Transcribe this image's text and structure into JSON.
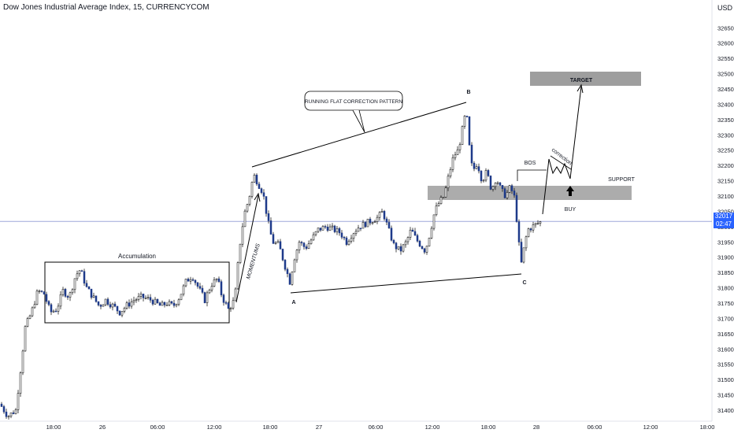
{
  "header": {
    "symbol_title": "Dow Jones Industrial Average Index, 15, CURRENCYCOM",
    "currency": "USD"
  },
  "price_tag": {
    "price": "32017",
    "countdown": "02:47",
    "color": "#2962ff"
  },
  "colors": {
    "up_candle": "#ffffff",
    "down_candle": "#1e3a8a",
    "wick": "#000000",
    "zone": "#9e9e9e",
    "axis_text": "#131722",
    "last_price_line": "#9fa8da"
  },
  "chart_data": {
    "type": "candlestick",
    "title": "Dow Jones Industrial Average Index, 15, CURRENCYCOM",
    "y_unit": "USD",
    "y_range": [
      31380,
      32680
    ],
    "y_ticks": [
      31400,
      31450,
      31500,
      31550,
      31600,
      31650,
      31700,
      31750,
      31800,
      31850,
      31900,
      31950,
      32000,
      32050,
      32100,
      32150,
      32200,
      32250,
      32300,
      32350,
      32400,
      32450,
      32500,
      32550,
      32600,
      32650
    ],
    "x_ticks": [
      "18:00",
      "26",
      "06:00",
      "12:00",
      "18:00",
      "27",
      "06:00",
      "12:00",
      "18:00",
      "28",
      "06:00",
      "12:00",
      "18:00"
    ],
    "last_price": 32017,
    "grid": false,
    "price_path": [
      {
        "x": 0,
        "p": 31420
      },
      {
        "x": 10,
        "p": 31380
      },
      {
        "x": 20,
        "p": 31400
      },
      {
        "x": 26,
        "p": 31530
      },
      {
        "x": 32,
        "p": 31670
      },
      {
        "x": 40,
        "p": 31720
      },
      {
        "x": 48,
        "p": 31790
      },
      {
        "x": 56,
        "p": 31780
      },
      {
        "x": 64,
        "p": 31720
      },
      {
        "x": 72,
        "p": 31730
      },
      {
        "x": 80,
        "p": 31790
      },
      {
        "x": 88,
        "p": 31770
      },
      {
        "x": 96,
        "p": 31840
      },
      {
        "x": 102,
        "p": 31860
      },
      {
        "x": 110,
        "p": 31800
      },
      {
        "x": 118,
        "p": 31770
      },
      {
        "x": 126,
        "p": 31740
      },
      {
        "x": 134,
        "p": 31760
      },
      {
        "x": 144,
        "p": 31740
      },
      {
        "x": 152,
        "p": 31720
      },
      {
        "x": 160,
        "p": 31740
      },
      {
        "x": 170,
        "p": 31760
      },
      {
        "x": 180,
        "p": 31770
      },
      {
        "x": 192,
        "p": 31760
      },
      {
        "x": 204,
        "p": 31740
      },
      {
        "x": 212,
        "p": 31750
      },
      {
        "x": 220,
        "p": 31740
      },
      {
        "x": 228,
        "p": 31770
      },
      {
        "x": 236,
        "p": 31820
      },
      {
        "x": 244,
        "p": 31840
      },
      {
        "x": 252,
        "p": 31800
      },
      {
        "x": 260,
        "p": 31760
      },
      {
        "x": 268,
        "p": 31810
      },
      {
        "x": 276,
        "p": 31830
      },
      {
        "x": 282,
        "p": 31770
      },
      {
        "x": 290,
        "p": 31730
      },
      {
        "x": 298,
        "p": 31760
      },
      {
        "x": 304,
        "p": 31930
      },
      {
        "x": 310,
        "p": 32040
      },
      {
        "x": 316,
        "p": 32090
      },
      {
        "x": 322,
        "p": 32170
      },
      {
        "x": 328,
        "p": 32140
      },
      {
        "x": 334,
        "p": 32110
      },
      {
        "x": 340,
        "p": 32020
      },
      {
        "x": 346,
        "p": 31950
      },
      {
        "x": 354,
        "p": 31940
      },
      {
        "x": 362,
        "p": 31870
      },
      {
        "x": 368,
        "p": 31820
      },
      {
        "x": 374,
        "p": 31900
      },
      {
        "x": 380,
        "p": 31950
      },
      {
        "x": 388,
        "p": 31930
      },
      {
        "x": 396,
        "p": 31960
      },
      {
        "x": 404,
        "p": 31990
      },
      {
        "x": 414,
        "p": 32000
      },
      {
        "x": 424,
        "p": 31990
      },
      {
        "x": 432,
        "p": 31980
      },
      {
        "x": 440,
        "p": 31950
      },
      {
        "x": 448,
        "p": 31980
      },
      {
        "x": 456,
        "p": 32000
      },
      {
        "x": 464,
        "p": 32010
      },
      {
        "x": 472,
        "p": 32020
      },
      {
        "x": 480,
        "p": 32030
      },
      {
        "x": 486,
        "p": 32050
      },
      {
        "x": 492,
        "p": 32000
      },
      {
        "x": 500,
        "p": 31940
      },
      {
        "x": 508,
        "p": 31920
      },
      {
        "x": 516,
        "p": 31950
      },
      {
        "x": 522,
        "p": 31990
      },
      {
        "x": 528,
        "p": 31960
      },
      {
        "x": 534,
        "p": 31940
      },
      {
        "x": 540,
        "p": 31920
      },
      {
        "x": 546,
        "p": 31980
      },
      {
        "x": 552,
        "p": 32050
      },
      {
        "x": 558,
        "p": 32080
      },
      {
        "x": 564,
        "p": 32100
      },
      {
        "x": 570,
        "p": 32170
      },
      {
        "x": 576,
        "p": 32230
      },
      {
        "x": 582,
        "p": 32250
      },
      {
        "x": 588,
        "p": 32330
      },
      {
        "x": 592,
        "p": 32380
      },
      {
        "x": 596,
        "p": 32260
      },
      {
        "x": 600,
        "p": 32180
      },
      {
        "x": 606,
        "p": 32210
      },
      {
        "x": 612,
        "p": 32150
      },
      {
        "x": 618,
        "p": 32180
      },
      {
        "x": 624,
        "p": 32120
      },
      {
        "x": 630,
        "p": 32160
      },
      {
        "x": 636,
        "p": 32120
      },
      {
        "x": 642,
        "p": 32100
      },
      {
        "x": 648,
        "p": 32130
      },
      {
        "x": 654,
        "p": 32090
      },
      {
        "x": 658,
        "p": 31960
      },
      {
        "x": 662,
        "p": 31880
      },
      {
        "x": 666,
        "p": 31940
      },
      {
        "x": 670,
        "p": 31990
      },
      {
        "x": 676,
        "p": 32000
      },
      {
        "x": 682,
        "p": 32010
      },
      {
        "x": 688,
        "p": 32017
      }
    ]
  },
  "annotations": {
    "accumulation": "Accumulation",
    "momentums": "MOMENTUMS",
    "pattern_callout": "RUNNING FLAT CORRECTION PATTERN",
    "point_a": "A",
    "point_b": "B",
    "point_c": "C",
    "target": "TARGET",
    "support": "SUPPORT",
    "bos": "BOS",
    "correction": "correction",
    "buy": "BUY"
  }
}
